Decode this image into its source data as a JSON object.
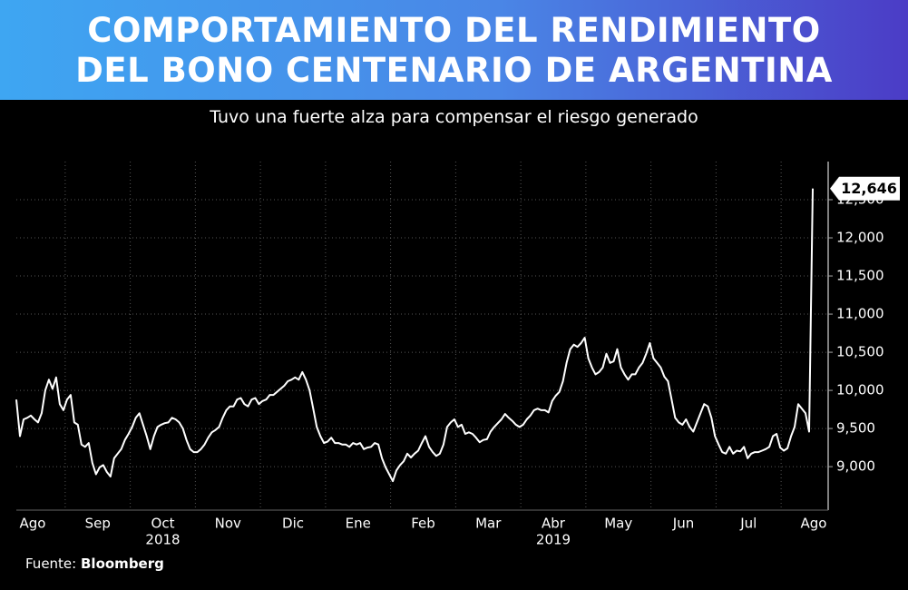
{
  "chart_data": {
    "type": "line",
    "title": [
      "COMPORTAMIENTO DEL RENDIMIENTO",
      "DEL BONO CENTENARIO DE ARGENTINA"
    ],
    "subtitle": "Tuvo una fuerte alza para compensar el riesgo generado",
    "source_label": "Fuente:",
    "source": "Bloomberg",
    "months": [
      "Ago",
      "Sep",
      "Oct",
      "Nov",
      "Dic",
      "Ene",
      "Feb",
      "Mar",
      "Abr",
      "May",
      "Jun",
      "Jul",
      "Ago"
    ],
    "years": [
      null,
      null,
      "2018",
      null,
      null,
      null,
      null,
      null,
      "2019",
      null,
      null,
      null,
      null
    ],
    "ylim": [
      8430,
      13000
    ],
    "yticks": [
      {
        "value": 9000,
        "label": "9,000"
      },
      {
        "value": 9500,
        "label": "9,500"
      },
      {
        "value": 10000,
        "label": "10,000"
      },
      {
        "value": 10500,
        "label": "10,500"
      },
      {
        "value": 11000,
        "label": "11,000"
      },
      {
        "value": 11500,
        "label": "11,500"
      },
      {
        "value": 12000,
        "label": "12,000"
      },
      {
        "value": 12500,
        "label": "12,500"
      }
    ],
    "grid": true,
    "series": [
      {
        "color": "#ffffff",
        "values": [
          9880,
          9400,
          9620,
          9640,
          9670,
          9620,
          9580,
          9700,
          10000,
          10140,
          10020,
          10170,
          9820,
          9740,
          9880,
          9940,
          9580,
          9550,
          9290,
          9260,
          9310,
          9050,
          8900,
          8990,
          9020,
          8930,
          8870,
          9110,
          9170,
          9230,
          9350,
          9430,
          9520,
          9640,
          9700,
          9550,
          9400,
          9230,
          9400,
          9520,
          9550,
          9570,
          9580,
          9640,
          9620,
          9580,
          9500,
          9350,
          9230,
          9190,
          9190,
          9230,
          9290,
          9380,
          9450,
          9480,
          9520,
          9640,
          9740,
          9790,
          9790,
          9880,
          9900,
          9820,
          9790,
          9880,
          9900,
          9820,
          9860,
          9880,
          9940,
          9940,
          9980,
          10020,
          10060,
          10120,
          10140,
          10170,
          10140,
          10240,
          10140,
          10000,
          9760,
          9520,
          9400,
          9310,
          9330,
          9380,
          9310,
          9310,
          9290,
          9290,
          9260,
          9310,
          9290,
          9310,
          9230,
          9250,
          9260,
          9310,
          9290,
          9110,
          8990,
          8900,
          8810,
          8950,
          9020,
          9070,
          9170,
          9120,
          9170,
          9210,
          9310,
          9400,
          9260,
          9190,
          9140,
          9170,
          9290,
          9520,
          9580,
          9620,
          9520,
          9550,
          9430,
          9450,
          9430,
          9380,
          9320,
          9350,
          9360,
          9460,
          9520,
          9570,
          9620,
          9690,
          9640,
          9600,
          9550,
          9520,
          9550,
          9620,
          9670,
          9740,
          9760,
          9740,
          9740,
          9710,
          9860,
          9930,
          9980,
          10120,
          10360,
          10540,
          10600,
          10570,
          10620,
          10690,
          10420,
          10300,
          10210,
          10240,
          10300,
          10480,
          10360,
          10380,
          10540,
          10300,
          10210,
          10140,
          10210,
          10210,
          10300,
          10360,
          10480,
          10620,
          10420,
          10360,
          10300,
          10180,
          10120,
          9880,
          9640,
          9580,
          9550,
          9620,
          9520,
          9460,
          9580,
          9700,
          9820,
          9790,
          9640,
          9400,
          9290,
          9190,
          9170,
          9260,
          9170,
          9210,
          9200,
          9260,
          9110,
          9170,
          9190,
          9190,
          9210,
          9230,
          9260,
          9400,
          9430,
          9250,
          9210,
          9240,
          9400,
          9520,
          9820,
          9760,
          9700,
          9460,
          12646
        ],
        "value_labels": {
          "last": "12,646"
        }
      }
    ]
  }
}
